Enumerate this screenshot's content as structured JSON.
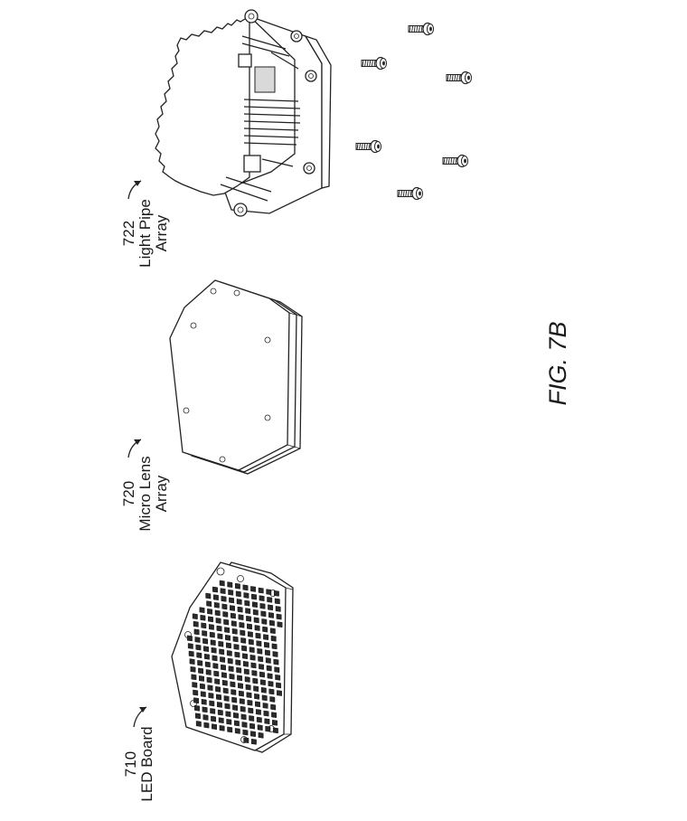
{
  "figure_label": "FIG. 7B",
  "components": [
    {
      "ref": "710",
      "name_line1": "LED Board",
      "name_line2": ""
    },
    {
      "ref": "720",
      "name_line1": "Micro Lens",
      "name_line2": "Array"
    },
    {
      "ref": "722",
      "name_line1": "Light Pipe",
      "name_line2": "Array"
    }
  ],
  "screws": 6
}
